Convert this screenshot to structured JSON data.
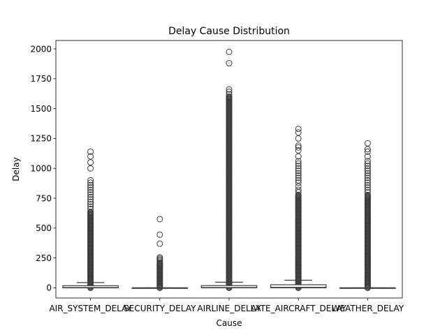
{
  "chart_data": {
    "type": "box",
    "title": "Delay Cause Distribution",
    "xlabel": "Cause",
    "ylabel": "Delay",
    "ylim": [
      -85,
      2070
    ],
    "yticks": [
      0,
      250,
      500,
      750,
      1000,
      1250,
      1500,
      1750,
      2000
    ],
    "categories": [
      "AIR_SYSTEM_DELAY",
      "SECURITY_DELAY",
      "AIRLINE_DELAY",
      "LATE_AIRCRAFT_DELAY",
      "WEATHER_DELAY"
    ],
    "boxes": [
      {
        "category": "AIR_SYSTEM_DELAY",
        "q1": 0,
        "median": 2,
        "q3": 18,
        "whisker_low": 0,
        "whisker_high": 44,
        "outlier_min": 0,
        "outlier_dense_to": 640,
        "outliers_sparse": [
          660,
          680,
          700,
          720,
          740,
          760,
          780,
          800,
          820,
          840,
          860,
          880,
          900,
          1000,
          1050,
          1100,
          1140
        ]
      },
      {
        "category": "SECURITY_DELAY",
        "q1": 0,
        "median": 0,
        "q3": 0,
        "whisker_low": 0,
        "whisker_high": 0,
        "outlier_min": 0,
        "outlier_dense_to": 215,
        "outliers_sparse": [
          225,
          235,
          245,
          255,
          370,
          445,
          575
        ]
      },
      {
        "category": "AIRLINE_DELAY",
        "q1": 0,
        "median": 2,
        "q3": 19,
        "whisker_low": 0,
        "whisker_high": 47,
        "outlier_min": 0,
        "outlier_dense_to": 1600,
        "outliers_sparse": [
          1620,
          1640,
          1660,
          1880,
          1975
        ]
      },
      {
        "category": "LATE_AIRCRAFT_DELAY",
        "q1": 0,
        "median": 3,
        "q3": 26,
        "whisker_low": 0,
        "whisker_high": 64,
        "outlier_min": 0,
        "outlier_dense_to": 780,
        "outliers_sparse": [
          800,
          820,
          850,
          880,
          900,
          920,
          940,
          960,
          980,
          1000,
          1020,
          1040,
          1060,
          1100,
          1150,
          1175,
          1190,
          1250,
          1300,
          1330
        ]
      },
      {
        "category": "WEATHER_DELAY",
        "q1": 0,
        "median": 0,
        "q3": 0,
        "whisker_low": 0,
        "whisker_high": 0,
        "outlier_min": 0,
        "outlier_dense_to": 780,
        "outliers_sparse": [
          800,
          820,
          840,
          860,
          880,
          900,
          920,
          940,
          960,
          980,
          1000,
          1020,
          1040,
          1060,
          1100,
          1140,
          1160,
          1210
        ]
      }
    ],
    "colors": {
      "box_edge": "#3d3d3d",
      "marker_edge": "#3d3d3d",
      "marker_face": "none",
      "background": "#ffffff",
      "frame": "#000000"
    },
    "grid": false,
    "legend": "none"
  }
}
